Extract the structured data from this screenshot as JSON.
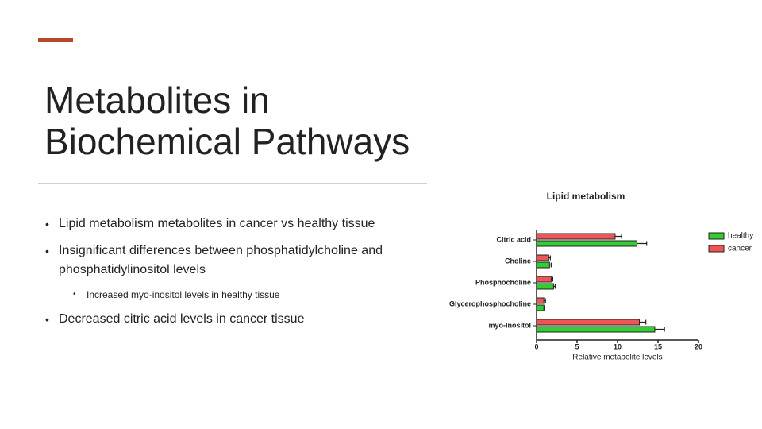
{
  "slide": {
    "title": [
      "Metabolites in",
      "Biochemical Pathways"
    ],
    "bullets": [
      {
        "text": "Lipid metabolism metabolites in cancer vs healthy tissue",
        "sub": []
      },
      {
        "text": "Insignificant differences between phosphatidylcholine and phosphatidylinositol levels",
        "sub": [
          "Increased myo-inositol levels in healthy tissue"
        ]
      },
      {
        "text": "Decreased citric acid levels in cancer tissue",
        "sub": []
      }
    ]
  },
  "chart_data": {
    "type": "bar",
    "orientation": "horizontal",
    "title": "Lipid metabolism",
    "xlabel": "Relative metabolite levels",
    "categories": [
      "Citric acid",
      "Choline",
      "Phosphocholine",
      "Glycerophosphocholine",
      "myo-Inositol"
    ],
    "series": [
      {
        "name": "healthy",
        "color": "#33cc33",
        "values": [
          12.4,
          1.6,
          2.1,
          0.9,
          14.6
        ],
        "errors": [
          1.2,
          0.2,
          0.2,
          0.1,
          1.2
        ]
      },
      {
        "name": "cancer",
        "color": "#ee5555",
        "values": [
          9.7,
          1.5,
          1.8,
          0.9,
          12.7
        ],
        "errors": [
          0.8,
          0.2,
          0.2,
          0.2,
          0.8
        ]
      }
    ],
    "xlim": [
      0,
      20
    ],
    "xticks": [
      0,
      5,
      10,
      15,
      20
    ],
    "legend": "right"
  }
}
